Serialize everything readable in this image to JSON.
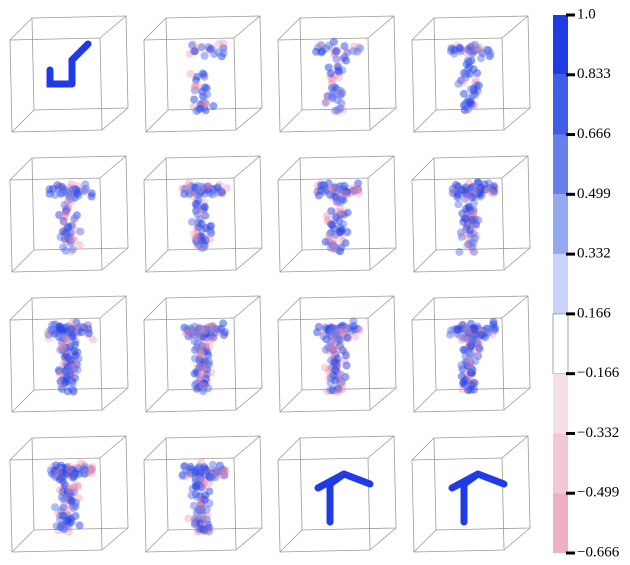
{
  "chart_data": {
    "type": "colorbar",
    "boundaries": [
      {
        "value": 1,
        "label": "1.0"
      },
      0.833,
      0.666,
      0.499,
      0.332,
      0.166,
      {
        "value": -0.166,
        "label": "−0.166"
      },
      {
        "value": -0.332,
        "label": "−0.332"
      },
      {
        "value": -0.499,
        "label": "−0.499"
      },
      {
        "value": -0.666,
        "label": "−0.666"
      }
    ],
    "colors": [
      "#1e3be6",
      "#3f5de9",
      "#6480ec",
      "#93a8f1",
      "#c9d3f9",
      "#ffffff",
      "#f6dfe8",
      "#f2c8d7",
      "#eeb0c7"
    ]
  }
}
